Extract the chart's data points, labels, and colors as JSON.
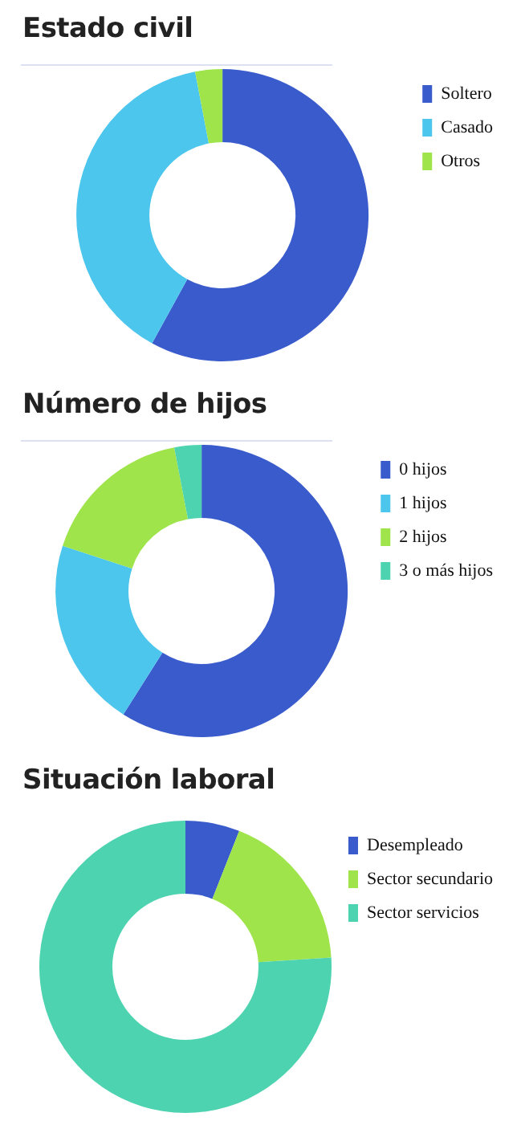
{
  "chart_data": [
    {
      "type": "donut",
      "title": "Estado civil",
      "categories": [
        "Soltero",
        "Casado",
        "Otros"
      ],
      "values": [
        58,
        39,
        3
      ],
      "colors": [
        "#3a5bcc",
        "#4cc6ec",
        "#9ee44a"
      ],
      "legend": "right"
    },
    {
      "type": "donut",
      "title": "Número de hijos",
      "categories": [
        "0 hijos",
        "1 hijos",
        "2 hijos",
        "3 o más hijos"
      ],
      "values": [
        59,
        21,
        17,
        3
      ],
      "colors": [
        "#3a5bcc",
        "#4cc6ec",
        "#9ee44a",
        "#4ed3b0"
      ],
      "legend": "right"
    },
    {
      "type": "donut",
      "title": "Situación laboral",
      "categories": [
        "Desempleado",
        "Sector secundario",
        "Sector servicios"
      ],
      "values": [
        6,
        18,
        76
      ],
      "colors": [
        "#3a5bcc",
        "#9ee44a",
        "#4ed3b0"
      ],
      "legend": "right"
    }
  ]
}
